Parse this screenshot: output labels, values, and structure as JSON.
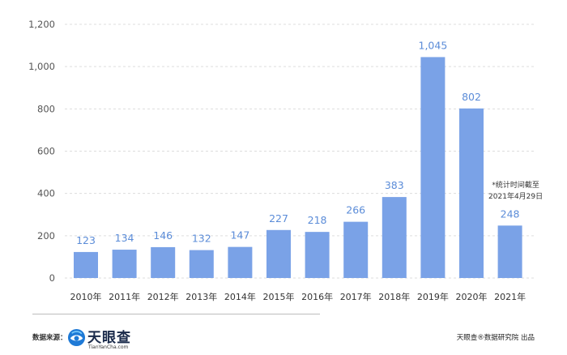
{
  "chart_data": {
    "type": "bar",
    "categories": [
      "2010年",
      "2011年",
      "2012年",
      "2013年",
      "2014年",
      "2015年",
      "2016年",
      "2017年",
      "2018年",
      "2019年",
      "2020年",
      "2021年"
    ],
    "values": [
      123,
      134,
      146,
      132,
      147,
      227,
      218,
      266,
      383,
      1045,
      802,
      248
    ],
    "ylim": [
      0,
      1200
    ],
    "yticks": [
      0,
      200,
      400,
      600,
      800,
      1000,
      1200
    ],
    "grid": true,
    "legend": "none",
    "annotation": {
      "category": "2021年",
      "lines": [
        "*统计时间截至",
        "2021年4月29日"
      ]
    },
    "bar_color": "#7AA2E7",
    "label_color": "#5B8CD8"
  },
  "footer": {
    "source_label": "数据来源：",
    "logo_icon": "tianyancha-logo-icon",
    "logo_name": "天眼查",
    "logo_url_text": "TianYanCha.com",
    "credit": "天眼查®数据研究院 出品"
  }
}
